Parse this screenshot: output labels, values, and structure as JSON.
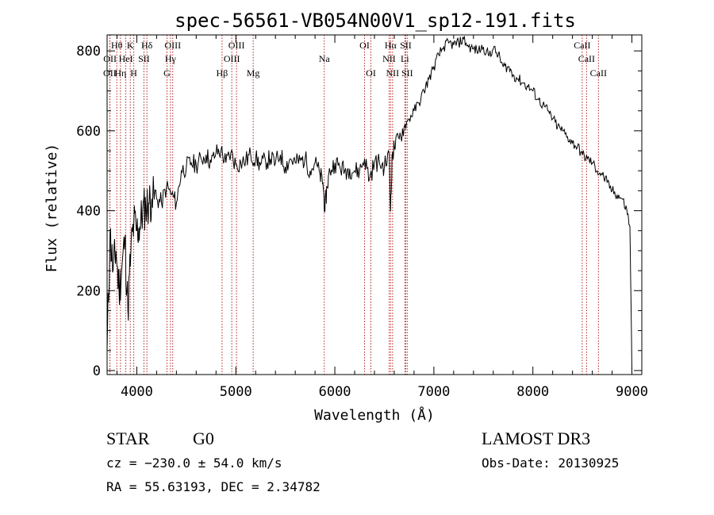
{
  "chart_data": {
    "type": "line",
    "title": "spec-56561-VB054N00V1_sp12-191.fits",
    "xlabel": "Wavelength (Å)",
    "ylabel": "Flux (relative)",
    "xlim": [
      3700,
      9100
    ],
    "ylim": [
      -10,
      840
    ],
    "xticks": [
      4000,
      5000,
      6000,
      7000,
      8000,
      9000
    ],
    "yticks": [
      0,
      200,
      400,
      600,
      800
    ],
    "series": [
      {
        "name": "flux",
        "x": [
          3700,
          3730,
          3760,
          3790,
          3820,
          3850,
          3880,
          3910,
          3940,
          3970,
          4000,
          4030,
          4060,
          4090,
          4120,
          4150,
          4200,
          4250,
          4300,
          4350,
          4400,
          4450,
          4500,
          4550,
          4600,
          4650,
          4700,
          4750,
          4800,
          4850,
          4900,
          4950,
          5000,
          5050,
          5100,
          5150,
          5200,
          5250,
          5300,
          5350,
          5400,
          5450,
          5500,
          5550,
          5600,
          5650,
          5700,
          5750,
          5800,
          5850,
          5880,
          5900,
          5920,
          5950,
          6000,
          6050,
          6100,
          6150,
          6200,
          6250,
          6300,
          6350,
          6400,
          6450,
          6500,
          6550,
          6563,
          6580,
          6600,
          6650,
          6700,
          6750,
          6800,
          6850,
          6900,
          6950,
          7000,
          7050,
          7100,
          7150,
          7200,
          7250,
          7300,
          7350,
          7400,
          7450,
          7500,
          7550,
          7600,
          7650,
          7700,
          7750,
          7800,
          7850,
          7900,
          7950,
          8000,
          8050,
          8100,
          8150,
          8200,
          8250,
          8300,
          8350,
          8400,
          8450,
          8500,
          8550,
          8600,
          8650,
          8700,
          8750,
          8800,
          8850,
          8900,
          8950,
          8980,
          9000
        ],
        "y": [
          50,
          340,
          250,
          300,
          200,
          260,
          330,
          150,
          300,
          370,
          350,
          360,
          400,
          410,
          420,
          430,
          430,
          420,
          460,
          440,
          420,
          500,
          510,
          520,
          515,
          530,
          540,
          520,
          545,
          550,
          520,
          545,
          515,
          520,
          525,
          540,
          530,
          515,
          525,
          530,
          520,
          540,
          510,
          530,
          520,
          525,
          530,
          500,
          520,
          490,
          470,
          400,
          460,
          500,
          520,
          510,
          500,
          505,
          500,
          500,
          530,
          480,
          520,
          520,
          510,
          540,
          400,
          540,
          560,
          580,
          610,
          630,
          650,
          670,
          700,
          730,
          760,
          790,
          810,
          820,
          815,
          820,
          830,
          810,
          805,
          800,
          810,
          790,
          805,
          790,
          760,
          760,
          740,
          730,
          720,
          710,
          700,
          680,
          665,
          650,
          630,
          610,
          600,
          585,
          570,
          560,
          540,
          530,
          520,
          500,
          490,
          470,
          450,
          440,
          430,
          400,
          360,
          0
        ]
      }
    ],
    "lines": [
      {
        "label": "OII",
        "x": 3727,
        "row": 3
      },
      {
        "label": "OII",
        "x": 3729,
        "row": 2
      },
      {
        "label": "Hθ",
        "x": 3798,
        "row": 1
      },
      {
        "label": "Hη",
        "x": 3835,
        "row": 3
      },
      {
        "label": "K",
        "x": 3934,
        "row": 1
      },
      {
        "label": "HeI",
        "x": 3889,
        "row": 2
      },
      {
        "label": "H",
        "x": 3969,
        "row": 3
      },
      {
        "label": "Hδ",
        "x": 4102,
        "row": 1
      },
      {
        "label": "SII",
        "x": 4072,
        "row": 2
      },
      {
        "label": "G",
        "x": 4305,
        "row": 3
      },
      {
        "label": "Hγ",
        "x": 4340,
        "row": 2
      },
      {
        "label": "OIII",
        "x": 4363,
        "row": 1
      },
      {
        "label": "Hβ",
        "x": 4861,
        "row": 3
      },
      {
        "label": "OIII",
        "x": 4959,
        "row": 2
      },
      {
        "label": "OIII",
        "x": 5007,
        "row": 1
      },
      {
        "label": "Mg",
        "x": 5175,
        "row": 3
      },
      {
        "label": "Na",
        "x": 5893,
        "row": 2
      },
      {
        "label": "OI",
        "x": 6300,
        "row": 1
      },
      {
        "label": "OI",
        "x": 6364,
        "row": 3
      },
      {
        "label": "NII",
        "x": 6548,
        "row": 2
      },
      {
        "label": "Hα",
        "x": 6563,
        "row": 1
      },
      {
        "label": "NII",
        "x": 6583,
        "row": 3
      },
      {
        "label": "Li",
        "x": 6707,
        "row": 2
      },
      {
        "label": "SII",
        "x": 6716,
        "row": 1
      },
      {
        "label": "SII",
        "x": 6731,
        "row": 3
      },
      {
        "label": "CaII",
        "x": 8498,
        "row": 1
      },
      {
        "label": "CaII",
        "x": 8542,
        "row": 2
      },
      {
        "label": "CaII",
        "x": 8662,
        "row": 3
      }
    ]
  },
  "footer": {
    "class": "STAR",
    "subclass": "G0",
    "survey": "LAMOST DR3",
    "cz": "cz = −230.0 ± 54.0 km/s",
    "obs_date": "Obs-Date: 20130925",
    "coords": "RA =  55.63193, DEC =   2.34782"
  },
  "colors": {
    "line": "#000000",
    "marker": "#b22222",
    "axis": "#000000"
  }
}
